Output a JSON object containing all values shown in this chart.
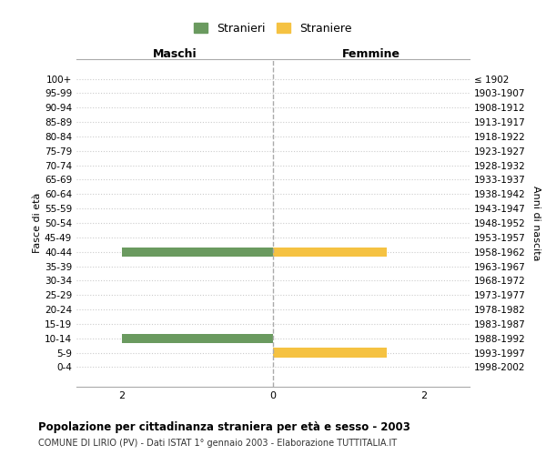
{
  "age_groups": [
    "0-4",
    "5-9",
    "10-14",
    "15-19",
    "20-24",
    "25-29",
    "30-34",
    "35-39",
    "40-44",
    "45-49",
    "50-54",
    "55-59",
    "60-64",
    "65-69",
    "70-74",
    "75-79",
    "80-84",
    "85-89",
    "90-94",
    "95-99",
    "100+"
  ],
  "birth_years": [
    "1998-2002",
    "1993-1997",
    "1988-1992",
    "1983-1987",
    "1978-1982",
    "1973-1977",
    "1968-1972",
    "1963-1967",
    "1958-1962",
    "1953-1957",
    "1948-1952",
    "1943-1947",
    "1938-1942",
    "1933-1937",
    "1928-1932",
    "1923-1927",
    "1918-1922",
    "1913-1917",
    "1908-1912",
    "1903-1907",
    "≤ 1902"
  ],
  "males": [
    0,
    0,
    -2,
    0,
    0,
    0,
    0,
    0,
    -2,
    0,
    0,
    0,
    0,
    0,
    0,
    0,
    0,
    0,
    0,
    0,
    0
  ],
  "females": [
    0,
    1.5,
    0,
    0,
    0,
    0,
    0,
    0,
    1.5,
    0,
    0,
    0,
    0,
    0,
    0,
    0,
    0,
    0,
    0,
    0,
    0
  ],
  "male_color": "#6a9a5f",
  "female_color": "#f5c242",
  "background_color": "#ffffff",
  "grid_color": "#cccccc",
  "title": "Popolazione per cittadinanza straniera per età e sesso - 2003",
  "subtitle": "COMUNE DI LIRIO (PV) - Dati ISTAT 1° gennaio 2003 - Elaborazione TUTTITALIA.IT",
  "ylabel_left": "Fasce di età",
  "ylabel_right": "Anni di nascita",
  "xlabel_left": "Maschi",
  "xlabel_right": "Femmine",
  "legend_male": "Stranieri",
  "legend_female": "Straniere",
  "xlim": [
    -2.6,
    2.6
  ],
  "xticks": [
    -2,
    0,
    2
  ],
  "xtick_labels": [
    "2",
    "0",
    "2"
  ]
}
